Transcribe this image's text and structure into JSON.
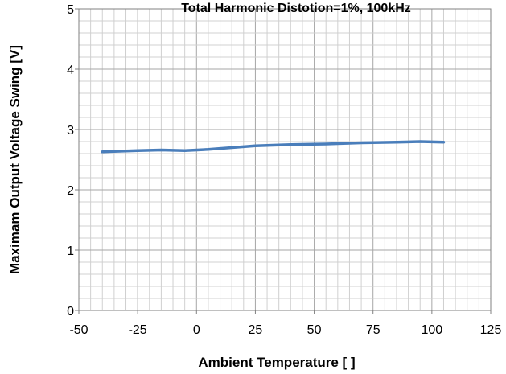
{
  "chart_data": {
    "type": "line",
    "title": "Total Harmonic Distotion=1%, 100kHz",
    "xlabel": "Ambient Temperature [ ]",
    "ylabel": "Maximam Output Voltage Swing [V]",
    "xlim": [
      -50,
      125
    ],
    "ylim": [
      0,
      5
    ],
    "xticks": [
      -50,
      -25,
      0,
      25,
      50,
      75,
      100,
      125
    ],
    "yticks": [
      0,
      1,
      2,
      3,
      4,
      5
    ],
    "xtick_labels": [
      "-50",
      "-25",
      "0",
      "25",
      "50",
      "75",
      "100",
      "125"
    ],
    "ytick_labels": [
      "0",
      "1",
      "2",
      "3",
      "4",
      "5"
    ],
    "grid": true,
    "grid_minor": true,
    "legend": "none",
    "series": [
      {
        "color": "#4a7ebb",
        "x": [
          -40,
          -25,
          -15,
          -5,
          5,
          15,
          25,
          40,
          55,
          70,
          85,
          95,
          105
        ],
        "y": [
          2.63,
          2.65,
          2.66,
          2.65,
          2.67,
          2.7,
          2.73,
          2.75,
          2.76,
          2.78,
          2.79,
          2.8,
          2.79
        ]
      }
    ]
  }
}
